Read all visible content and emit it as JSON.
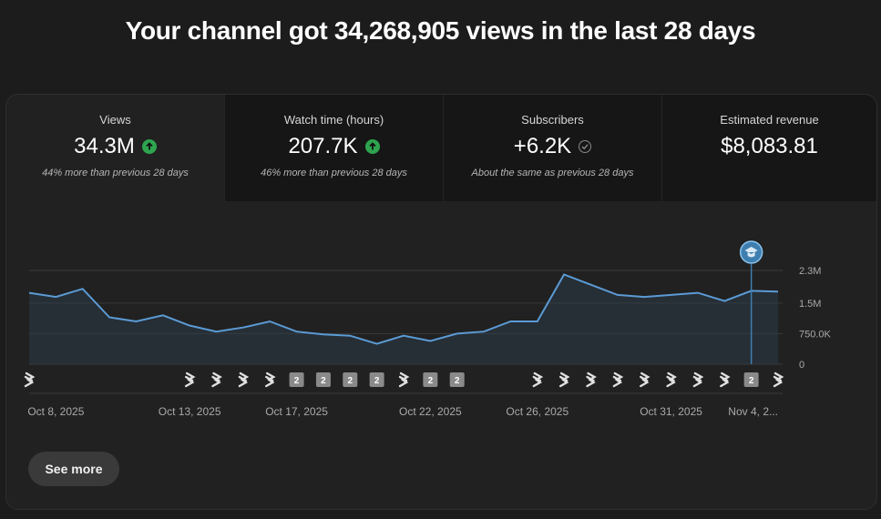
{
  "headline": "Your channel got 34,268,905 views in the last 28 days",
  "tabs": [
    {
      "label": "Views",
      "value": "34.3M",
      "icon": "arrow-up-circle-icon",
      "note": "44% more than previous 28 days"
    },
    {
      "label": "Watch time (hours)",
      "value": "207.7K",
      "icon": "arrow-up-circle-icon",
      "note": "46% more than previous 28 days"
    },
    {
      "label": "Subscribers",
      "value": "+6.2K",
      "icon": "check-circle-icon",
      "note": "About the same as previous 28 days"
    },
    {
      "label": "Estimated revenue",
      "value": "$8,083.81",
      "icon": "",
      "note": ""
    }
  ],
  "colors": {
    "accent": "#5b9bd5",
    "up": "#2ea44f",
    "marker": "#3e7fb0"
  },
  "chart_data": {
    "type": "area",
    "x_dates": [
      "Oct 7",
      "Oct 8",
      "Oct 9",
      "Oct 10",
      "Oct 11",
      "Oct 12",
      "Oct 13",
      "Oct 14",
      "Oct 15",
      "Oct 16",
      "Oct 17",
      "Oct 18",
      "Oct 19",
      "Oct 20",
      "Oct 21",
      "Oct 22",
      "Oct 23",
      "Oct 24",
      "Oct 25",
      "Oct 26",
      "Oct 27",
      "Oct 28",
      "Oct 29",
      "Oct 30",
      "Oct 31",
      "Nov 1",
      "Nov 2",
      "Nov 3",
      "Nov 4"
    ],
    "values": [
      1.75,
      1.65,
      1.85,
      1.15,
      1.05,
      1.2,
      0.95,
      0.8,
      0.9,
      1.05,
      0.8,
      0.73,
      0.7,
      0.5,
      0.7,
      0.57,
      0.75,
      0.8,
      1.05,
      1.05,
      2.2,
      1.95,
      1.7,
      1.65,
      1.7,
      1.75,
      1.55,
      1.8,
      1.78
    ],
    "ylabel_unit": "views (M)",
    "ylim": [
      0,
      2.3
    ],
    "yticks": [
      {
        "v": 2.3,
        "label": "2.3M"
      },
      {
        "v": 1.5,
        "label": "1.5M"
      },
      {
        "v": 0.75,
        "label": "750.0K"
      },
      {
        "v": 0,
        "label": "0"
      }
    ],
    "xticks": [
      {
        "i": 1,
        "label": "Oct 8, 2025"
      },
      {
        "i": 6,
        "label": "Oct 13, 2025"
      },
      {
        "i": 10,
        "label": "Oct 17, 2025"
      },
      {
        "i": 15,
        "label": "Oct 22, 2025"
      },
      {
        "i": 19,
        "label": "Oct 26, 2025"
      },
      {
        "i": 24,
        "label": "Oct 31, 2025"
      },
      {
        "i": 28,
        "label": "Nov 4, 2..."
      }
    ],
    "upload_markers": [
      "shorts",
      "none",
      "none",
      "none",
      "none",
      "none",
      "shorts",
      "shorts",
      "shorts",
      "shorts",
      "video",
      "video",
      "video",
      "video",
      "shorts",
      "video",
      "video",
      "none",
      "none",
      "shorts",
      "shorts",
      "shorts",
      "shorts",
      "shorts",
      "shorts",
      "shorts",
      "shorts",
      "video",
      "shorts"
    ],
    "upload_marker_video_label": "2",
    "highlight_index": 27,
    "highlight_icon": "graduation-cap-icon",
    "grid": true
  },
  "see_more_label": "See more"
}
